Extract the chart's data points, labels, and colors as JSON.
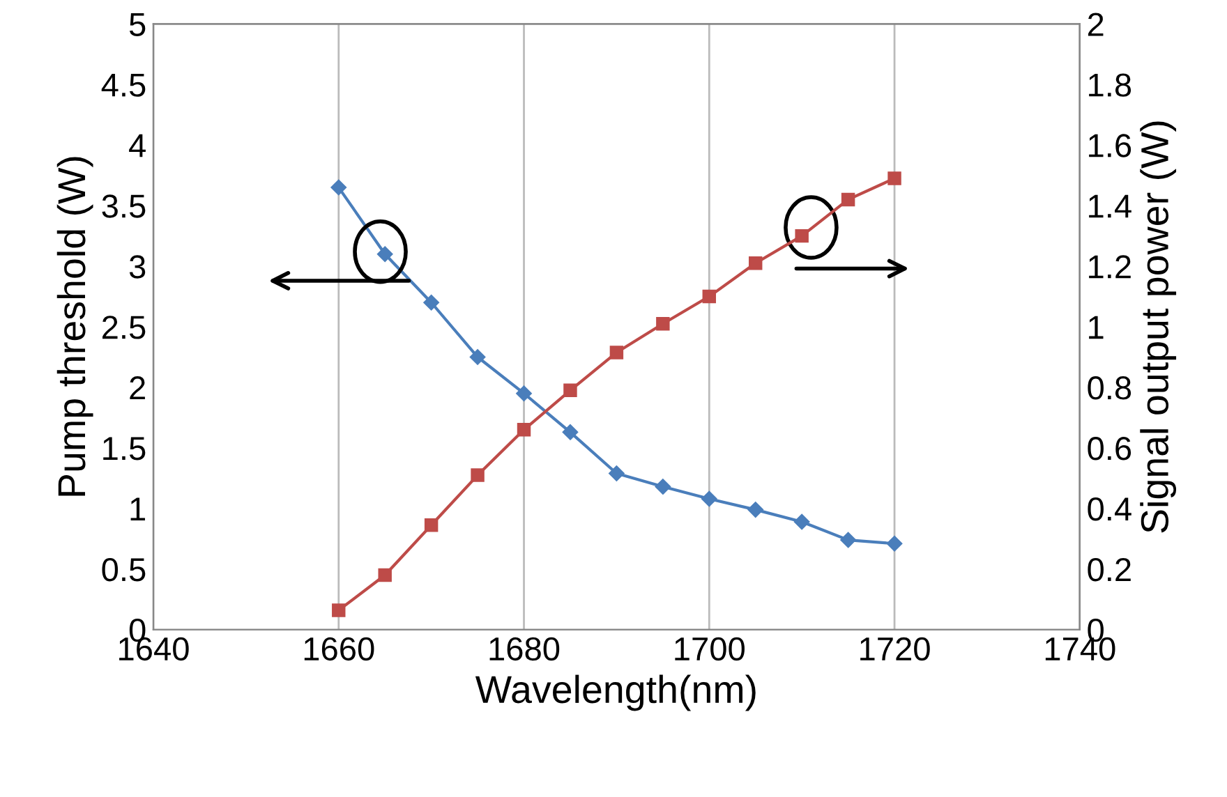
{
  "chart_data": {
    "type": "line",
    "xlabel": "Wavelength(nm)",
    "ylabel": "Pump threshold (W)",
    "y2label": "Signal output power (W)",
    "x": [
      1660,
      1665,
      1670,
      1675,
      1680,
      1685,
      1690,
      1695,
      1700,
      1705,
      1710,
      1715,
      1720
    ],
    "series": [
      {
        "color": "#4a7ebb",
        "marker": "diamond",
        "values": [
          3.65,
          3.1,
          2.7,
          2.25,
          1.95,
          1.63,
          1.29,
          1.18,
          1.08,
          0.99,
          0.89,
          0.74,
          0.71
        ]
      },
      {
        "color": "#be4b48",
        "marker": "square",
        "axis": "y2",
        "values": [
          0.064,
          0.18,
          0.345,
          0.51,
          0.66,
          0.79,
          0.915,
          1.01,
          1.1,
          1.21,
          1.3,
          1.42,
          1.49
        ]
      }
    ],
    "xlim": [
      1640,
      1740
    ],
    "xticks": [
      1640,
      1660,
      1680,
      1700,
      1720,
      1740
    ],
    "ylim": [
      0,
      5
    ],
    "yticks": [
      0,
      0.5,
      1,
      1.5,
      2,
      2.5,
      3,
      3.5,
      4,
      4.5,
      5
    ],
    "y2lim": [
      0,
      2
    ],
    "y2ticks": [
      0,
      0.2,
      0.4,
      0.6,
      0.8,
      1,
      1.2,
      1.4,
      1.6,
      1.8,
      2
    ],
    "grid": "x",
    "legend": false
  }
}
